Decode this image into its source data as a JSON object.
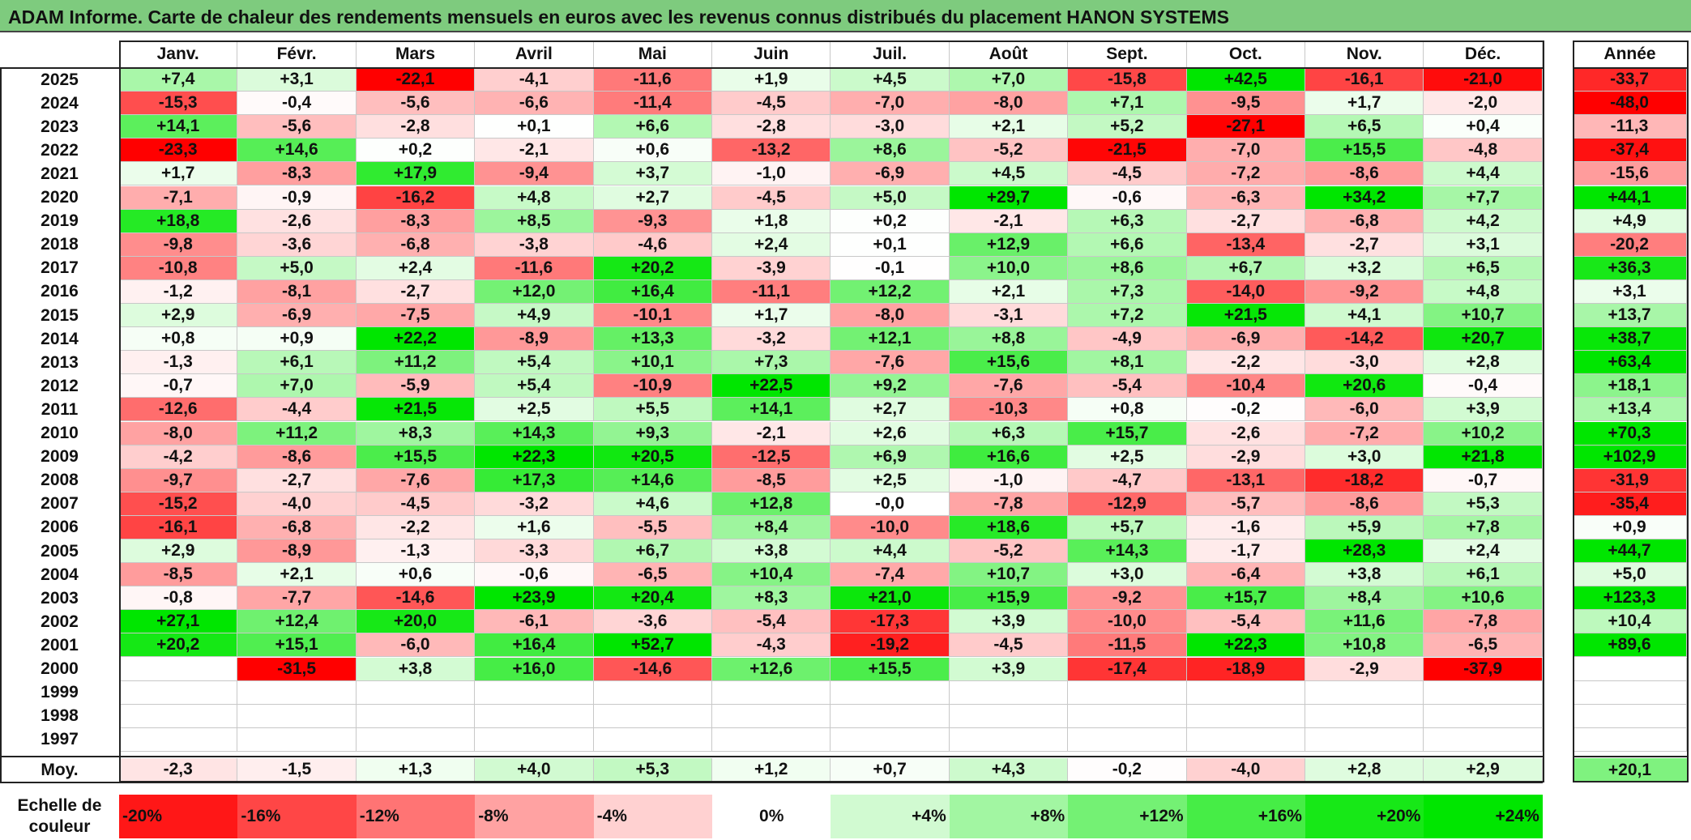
{
  "title": "ADAM Informe. Carte de chaleur des rendements mensuels en euros avec les revenus connus distribués du placement HANON SYSTEMS",
  "colors": {
    "negative": "#ff0000",
    "neutral": "#ffffff",
    "positive": "#00e600",
    "title_bg": "#7ecb7e"
  },
  "chart_data": {
    "type": "heatmap",
    "months": [
      "Janv.",
      "Févr.",
      "Mars",
      "Avril",
      "Mai",
      "Juin",
      "Juil.",
      "Août",
      "Sept.",
      "Oct.",
      "Nov.",
      "Déc."
    ],
    "year_header": "Année",
    "rows": [
      {
        "year": "2025",
        "values": [
          "+7,4",
          "+3,1",
          "-22,1",
          "-4,1",
          "-11,6",
          "+1,9",
          "+4,5",
          "+7,0",
          "-15,8",
          "+42,5",
          "-16,1",
          "-21,0"
        ],
        "annual": "-33,7"
      },
      {
        "year": "2024",
        "values": [
          "-15,3",
          "-0,4",
          "-5,6",
          "-6,6",
          "-11,4",
          "-4,5",
          "-7,0",
          "-8,0",
          "+7,1",
          "-9,5",
          "+1,7",
          "-2,0"
        ],
        "annual": "-48,0"
      },
      {
        "year": "2023",
        "values": [
          "+14,1",
          "-5,6",
          "-2,8",
          "+0,1",
          "+6,6",
          "-2,8",
          "-3,0",
          "+2,1",
          "+5,2",
          "-27,1",
          "+6,5",
          "+0,4"
        ],
        "annual": "-11,3"
      },
      {
        "year": "2022",
        "values": [
          "-23,3",
          "+14,6",
          "+0,2",
          "-2,1",
          "+0,6",
          "-13,2",
          "+8,6",
          "-5,2",
          "-21,5",
          "-7,0",
          "+15,5",
          "-4,8"
        ],
        "annual": "-37,4"
      },
      {
        "year": "2021",
        "values": [
          "+1,7",
          "-8,3",
          "+17,9",
          "-9,4",
          "+3,7",
          "-1,0",
          "-6,9",
          "+4,5",
          "-4,5",
          "-7,2",
          "-8,6",
          "+4,4"
        ],
        "annual": "-15,6"
      },
      {
        "year": "2020",
        "values": [
          "-7,1",
          "-0,9",
          "-16,2",
          "+4,8",
          "+2,7",
          "-4,5",
          "+5,0",
          "+29,7",
          "-0,6",
          "-6,3",
          "+34,2",
          "+7,7"
        ],
        "annual": "+44,1"
      },
      {
        "year": "2019",
        "values": [
          "+18,8",
          "-2,6",
          "-8,3",
          "+8,5",
          "-9,3",
          "+1,8",
          "+0,2",
          "-2,1",
          "+6,3",
          "-2,7",
          "-6,8",
          "+4,2"
        ],
        "annual": "+4,9"
      },
      {
        "year": "2018",
        "values": [
          "-9,8",
          "-3,6",
          "-6,8",
          "-3,8",
          "-4,6",
          "+2,4",
          "+0,1",
          "+12,9",
          "+6,6",
          "-13,4",
          "-2,7",
          "+3,1"
        ],
        "annual": "-20,2"
      },
      {
        "year": "2017",
        "values": [
          "-10,8",
          "+5,0",
          "+2,4",
          "-11,6",
          "+20,2",
          "-3,9",
          "-0,1",
          "+10,0",
          "+8,6",
          "+6,7",
          "+3,2",
          "+6,5"
        ],
        "annual": "+36,3"
      },
      {
        "year": "2016",
        "values": [
          "-1,2",
          "-8,1",
          "-2,7",
          "+12,0",
          "+16,4",
          "-11,1",
          "+12,2",
          "+2,1",
          "+7,3",
          "-14,0",
          "-9,2",
          "+4,8"
        ],
        "annual": "+3,1"
      },
      {
        "year": "2015",
        "values": [
          "+2,9",
          "-6,9",
          "-7,5",
          "+4,9",
          "-10,1",
          "+1,7",
          "-8,0",
          "-3,1",
          "+7,2",
          "+21,5",
          "+4,1",
          "+10,7"
        ],
        "annual": "+13,7"
      },
      {
        "year": "2014",
        "values": [
          "+0,8",
          "+0,9",
          "+22,2",
          "-8,9",
          "+13,3",
          "-3,2",
          "+12,1",
          "+8,8",
          "-4,9",
          "-6,9",
          "-14,2",
          "+20,7"
        ],
        "annual": "+38,7"
      },
      {
        "year": "2013",
        "values": [
          "-1,3",
          "+6,1",
          "+11,2",
          "+5,4",
          "+10,1",
          "+7,3",
          "-7,6",
          "+15,6",
          "+8,1",
          "-2,2",
          "-3,0",
          "+2,8"
        ],
        "annual": "+63,4"
      },
      {
        "year": "2012",
        "values": [
          "-0,7",
          "+7,0",
          "-5,9",
          "+5,4",
          "-10,9",
          "+22,5",
          "+9,2",
          "-7,6",
          "-5,4",
          "-10,4",
          "+20,6",
          "-0,4"
        ],
        "annual": "+18,1"
      },
      {
        "year": "2011",
        "values": [
          "-12,6",
          "-4,4",
          "+21,5",
          "+2,5",
          "+5,5",
          "+14,1",
          "+2,7",
          "-10,3",
          "+0,8",
          "-0,2",
          "-6,0",
          "+3,9"
        ],
        "annual": "+13,4"
      },
      {
        "year": "2010",
        "values": [
          "-8,0",
          "+11,2",
          "+8,3",
          "+14,3",
          "+9,3",
          "-2,1",
          "+2,6",
          "+6,3",
          "+15,7",
          "-2,6",
          "-7,2",
          "+10,2"
        ],
        "annual": "+70,3"
      },
      {
        "year": "2009",
        "values": [
          "-4,2",
          "-8,6",
          "+15,5",
          "+22,3",
          "+20,5",
          "-12,5",
          "+6,9",
          "+16,6",
          "+2,5",
          "-2,9",
          "+3,0",
          "+21,8"
        ],
        "annual": "+102,9"
      },
      {
        "year": "2008",
        "values": [
          "-9,7",
          "-2,7",
          "-7,6",
          "+17,3",
          "+14,6",
          "-8,5",
          "+2,5",
          "-1,0",
          "-4,7",
          "-13,1",
          "-18,2",
          "-0,7"
        ],
        "annual": "-31,9"
      },
      {
        "year": "2007",
        "values": [
          "-15,2",
          "-4,0",
          "-4,5",
          "-3,2",
          "+4,6",
          "+12,8",
          "-0,0",
          "-7,8",
          "-12,9",
          "-5,7",
          "-8,6",
          "+5,3"
        ],
        "annual": "-35,4"
      },
      {
        "year": "2006",
        "values": [
          "-16,1",
          "-6,8",
          "-2,2",
          "+1,6",
          "-5,5",
          "+8,4",
          "-10,0",
          "+18,6",
          "+5,7",
          "-1,6",
          "+5,9",
          "+7,8"
        ],
        "annual": "+0,9"
      },
      {
        "year": "2005",
        "values": [
          "+2,9",
          "-8,9",
          "-1,3",
          "-3,3",
          "+6,7",
          "+3,8",
          "+4,4",
          "-5,2",
          "+14,3",
          "-1,7",
          "+28,3",
          "+2,4"
        ],
        "annual": "+44,7"
      },
      {
        "year": "2004",
        "values": [
          "-8,5",
          "+2,1",
          "+0,6",
          "-0,6",
          "-6,5",
          "+10,4",
          "-7,4",
          "+10,7",
          "+3,0",
          "-6,4",
          "+3,8",
          "+6,1"
        ],
        "annual": "+5,0"
      },
      {
        "year": "2003",
        "values": [
          "-0,8",
          "-7,7",
          "-14,6",
          "+23,9",
          "+20,4",
          "+8,3",
          "+21,0",
          "+15,9",
          "-9,2",
          "+15,7",
          "+8,4",
          "+10,6"
        ],
        "annual": "+123,3"
      },
      {
        "year": "2002",
        "values": [
          "+27,1",
          "+12,4",
          "+20,0",
          "-6,1",
          "-3,6",
          "-5,4",
          "-17,3",
          "+3,9",
          "-10,0",
          "-5,4",
          "+11,6",
          "-7,8"
        ],
        "annual": "+10,4"
      },
      {
        "year": "2001",
        "values": [
          "+20,2",
          "+15,1",
          "-6,0",
          "+16,4",
          "+52,7",
          "-4,3",
          "-19,2",
          "-4,5",
          "-11,5",
          "+22,3",
          "+10,8",
          "-6,5"
        ],
        "annual": "+89,6"
      },
      {
        "year": "2000",
        "values": [
          "",
          "-31,5",
          "+3,8",
          "+16,0",
          "-14,6",
          "+12,6",
          "+15,5",
          "+3,9",
          "-17,4",
          "-18,9",
          "-2,9",
          "-37,9"
        ],
        "annual": ""
      },
      {
        "year": "1999",
        "values": [
          "",
          "",
          "",
          "",
          "",
          "",
          "",
          "",
          "",
          "",
          "",
          ""
        ],
        "annual": ""
      },
      {
        "year": "1998",
        "values": [
          "",
          "",
          "",
          "",
          "",
          "",
          "",
          "",
          "",
          "",
          "",
          ""
        ],
        "annual": ""
      },
      {
        "year": "1997",
        "values": [
          "",
          "",
          "",
          "",
          "",
          "",
          "",
          "",
          "",
          "",
          "",
          ""
        ],
        "annual": ""
      }
    ],
    "average": {
      "label": "Moy.",
      "values": [
        "-2,3",
        "-1,5",
        "+1,3",
        "+4,0",
        "+5,3",
        "+1,2",
        "+0,7",
        "+4,3",
        "-0,2",
        "-4,0",
        "+2,8",
        "+2,9"
      ],
      "annual": "+20,1"
    },
    "scale": {
      "label": "Echelle de couleur",
      "steps": [
        {
          "label": "-20%",
          "value": -20
        },
        {
          "label": "-16%",
          "value": -16
        },
        {
          "label": "-12%",
          "value": -12
        },
        {
          "label": "-8%",
          "value": -8
        },
        {
          "label": "-4%",
          "value": -4
        },
        {
          "label": "0%",
          "value": 0
        },
        {
          "label": "+4%",
          "value": 4
        },
        {
          "label": "+8%",
          "value": 8
        },
        {
          "label": "+12%",
          "value": 12
        },
        {
          "label": "+16%",
          "value": 16
        },
        {
          "label": "+20%",
          "value": 20
        },
        {
          "label": "+24%",
          "value": 24
        }
      ]
    }
  }
}
